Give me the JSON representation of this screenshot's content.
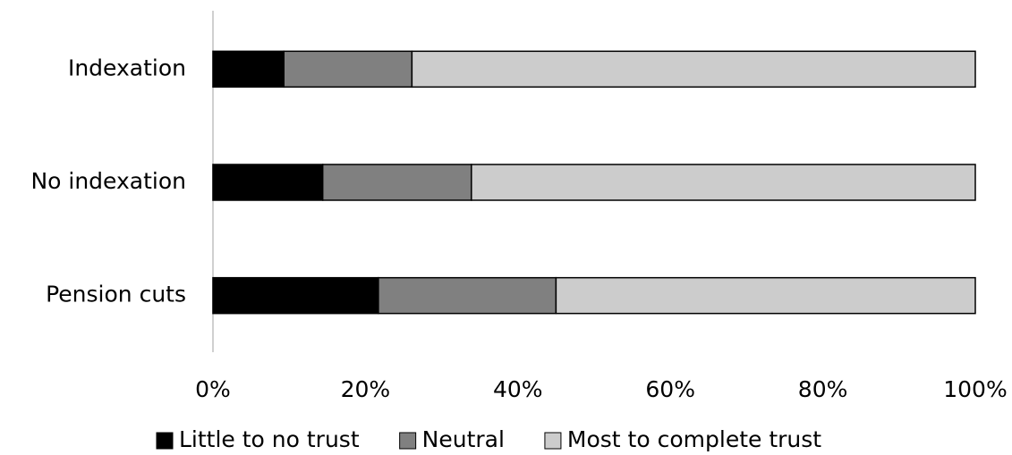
{
  "chart_data": {
    "type": "stacked-bar-horizontal",
    "categories": [
      "Indexation",
      "No indexation",
      "Pension cuts"
    ],
    "series": [
      {
        "name": "Little to no trust",
        "color": "#000000",
        "values": [
          9.3,
          14.4,
          21.7
        ]
      },
      {
        "name": "Neutral",
        "color": "#808080",
        "values": [
          16.8,
          19.5,
          23.3
        ]
      },
      {
        "name": "Most to complete trust",
        "color": "#cccccc",
        "values": [
          73.9,
          66.1,
          55.0
        ]
      }
    ],
    "xlim": [
      0,
      100
    ],
    "xticks": [
      {
        "value": 0,
        "label": "0%"
      },
      {
        "value": 20,
        "label": "20%"
      },
      {
        "value": 40,
        "label": "40%"
      },
      {
        "value": 60,
        "label": "60%"
      },
      {
        "value": 80,
        "label": "80%"
      },
      {
        "value": 100,
        "label": "100%"
      }
    ],
    "grid": false,
    "legend": "bottom"
  }
}
